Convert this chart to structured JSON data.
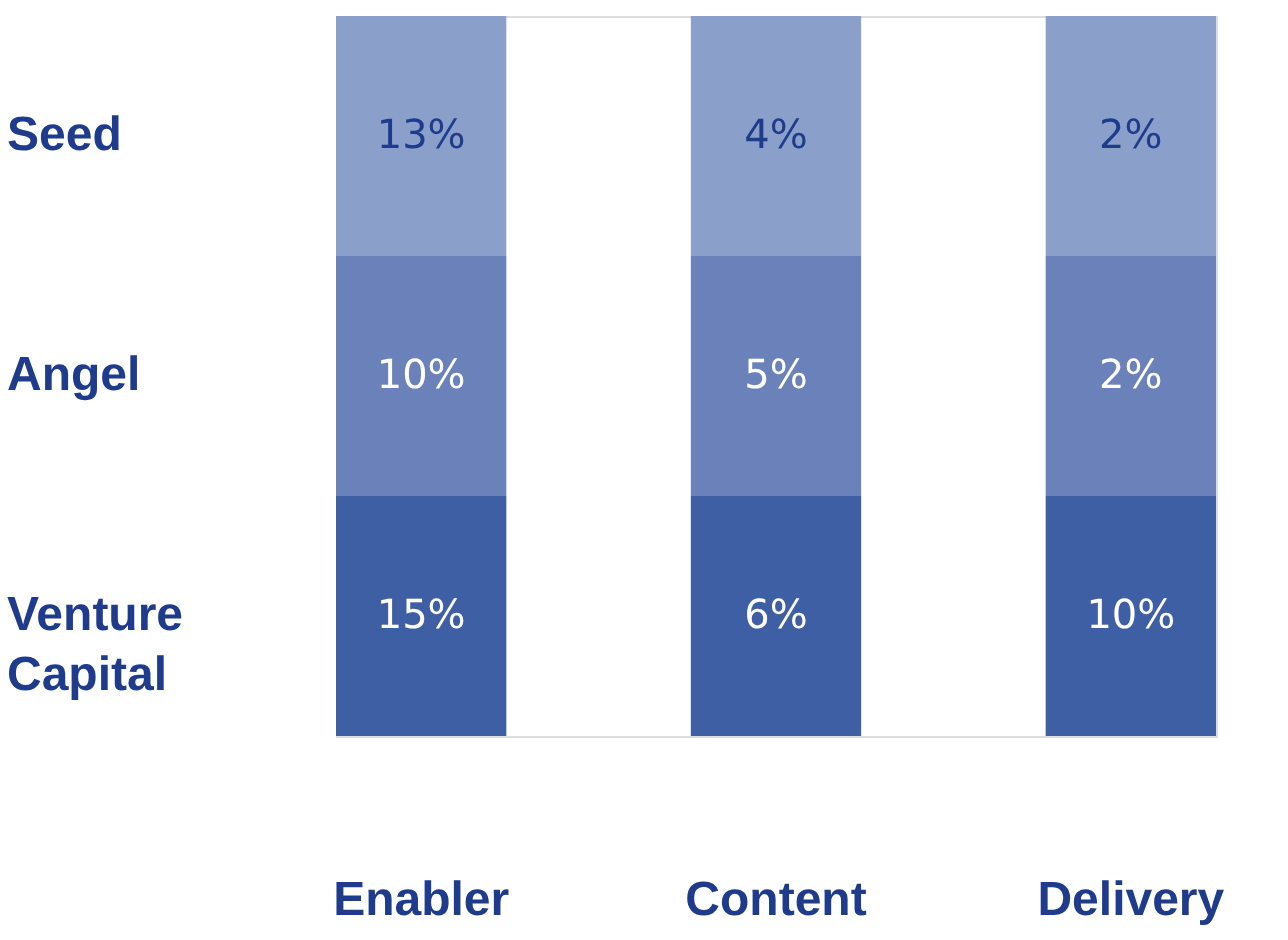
{
  "chart_data": {
    "type": "heatmap",
    "categories": [
      "Enabler",
      "Content",
      "Delivery"
    ],
    "y_categories": [
      "Seed",
      "Angel",
      "Venture Capital"
    ],
    "cells": [
      [
        13,
        4,
        2
      ],
      [
        10,
        5,
        2
      ],
      [
        15,
        6,
        10
      ]
    ],
    "cell_labels": [
      [
        "13%",
        "4%",
        "2%"
      ],
      [
        "10%",
        "5%",
        "2%"
      ],
      [
        "15%",
        "6%",
        "10%"
      ]
    ],
    "colors": [
      "#8a9fca",
      "#8a9fca",
      "#8a9fca",
      "#6a82b9",
      "#6a82b9",
      "#6a82b9",
      "#3e5fa3",
      "#3e5fa3",
      "#3e5fa3"
    ]
  }
}
